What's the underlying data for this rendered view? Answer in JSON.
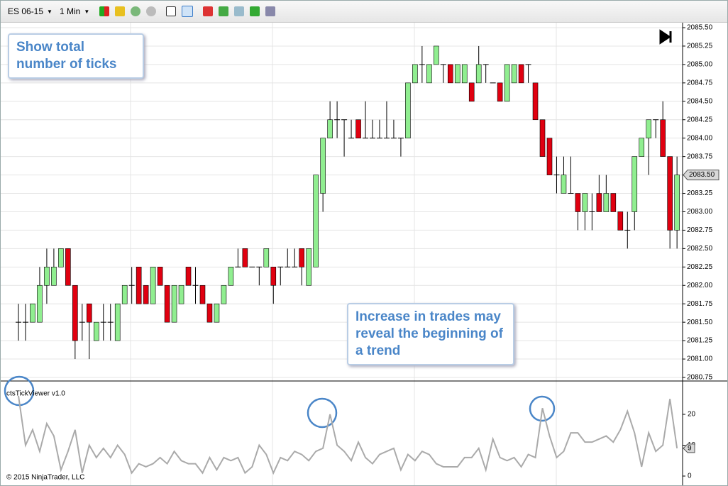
{
  "toolbar": {
    "instrument": "ES 06-15",
    "interval": "1 Min"
  },
  "annotations": [
    "Show total number of ticks",
    "Increase in trades may reveal the beginning of a trend"
  ],
  "copyright": "© 2015 NinjaTrader, LLC",
  "chart_data": [
    {
      "type": "candlestick",
      "ohlc": [
        [
          2081.5,
          2081.75,
          2081.25,
          2081.5
        ],
        [
          2081.5,
          2081.75,
          2081.25,
          2081.5
        ],
        [
          2081.5,
          2081.75,
          2081.5,
          2081.75
        ],
        [
          2081.5,
          2082.25,
          2081.5,
          2082
        ],
        [
          2082,
          2082.5,
          2081.75,
          2082.25
        ],
        [
          2082,
          2082.5,
          2082,
          2082.25
        ],
        [
          2082.25,
          2082.5,
          2082.25,
          2082.5
        ],
        [
          2082.5,
          2082.5,
          2082,
          2082
        ],
        [
          2082,
          2082,
          2081,
          2081.25
        ],
        [
          2081.5,
          2081.75,
          2081.25,
          2081.5
        ],
        [
          2081.75,
          2081.75,
          2081,
          2081.5
        ],
        [
          2081.25,
          2081.5,
          2081.25,
          2081.5
        ],
        [
          2081.5,
          2081.75,
          2081.25,
          2081.5
        ],
        [
          2081.5,
          2081.75,
          2081.25,
          2081.5
        ],
        [
          2081.25,
          2081.75,
          2081.25,
          2081.75
        ],
        [
          2081.75,
          2082,
          2081.75,
          2082
        ],
        [
          2082,
          2082.25,
          2081.75,
          2082
        ],
        [
          2082.25,
          2082.25,
          2081.75,
          2081.75
        ],
        [
          2082,
          2082,
          2081.75,
          2081.75
        ],
        [
          2081.75,
          2082.25,
          2081.75,
          2082.25
        ],
        [
          2082.25,
          2082.25,
          2082,
          2082
        ],
        [
          2082,
          2082,
          2081.5,
          2081.5
        ],
        [
          2081.5,
          2082,
          2081.5,
          2082
        ],
        [
          2081.75,
          2082,
          2081.75,
          2082
        ],
        [
          2082.25,
          2082.25,
          2082,
          2082
        ],
        [
          2082,
          2082.25,
          2081.75,
          2082
        ],
        [
          2082,
          2082,
          2081.75,
          2081.75
        ],
        [
          2081.75,
          2081.75,
          2081.5,
          2081.5
        ],
        [
          2081.5,
          2081.75,
          2081.5,
          2081.75
        ],
        [
          2081.75,
          2082,
          2081.75,
          2082
        ],
        [
          2082,
          2082.25,
          2082,
          2082.25
        ],
        [
          2082.25,
          2082.5,
          2082.25,
          2082.25
        ],
        [
          2082.5,
          2082.5,
          2082.25,
          2082.25
        ],
        [
          2082.25,
          2082.25,
          2082.25,
          2082.25
        ],
        [
          2082.25,
          2082.25,
          2082,
          2082.25
        ],
        [
          2082.25,
          2082.5,
          2082.25,
          2082.5
        ],
        [
          2082.25,
          2082.25,
          2081.75,
          2082
        ],
        [
          2082.25,
          2082.25,
          2082,
          2082.25
        ],
        [
          2082.25,
          2082.5,
          2082.25,
          2082.25
        ],
        [
          2082.25,
          2082.5,
          2082.25,
          2082.25
        ],
        [
          2082.5,
          2082.5,
          2082,
          2082.25
        ],
        [
          2082,
          2082.5,
          2082,
          2082.5
        ],
        [
          2082.25,
          2083.5,
          2082.25,
          2083.5
        ],
        [
          2083.25,
          2084,
          2083,
          2084
        ],
        [
          2084,
          2084.5,
          2084,
          2084.25
        ],
        [
          2084.25,
          2084.5,
          2084,
          2084.25
        ],
        [
          2084.25,
          2084.25,
          2083.75,
          2084.25
        ],
        [
          2084,
          2084.25,
          2084,
          2084
        ],
        [
          2084.25,
          2084.25,
          2084,
          2084
        ],
        [
          2084,
          2084.5,
          2084,
          2084
        ],
        [
          2084,
          2084.25,
          2084,
          2084
        ],
        [
          2084,
          2084.25,
          2084,
          2084
        ],
        [
          2084,
          2084.5,
          2084,
          2084
        ],
        [
          2084,
          2084.25,
          2084,
          2084
        ],
        [
          2084,
          2084,
          2083.75,
          2084
        ],
        [
          2084,
          2084.75,
          2084,
          2084.75
        ],
        [
          2084.75,
          2085,
          2084.75,
          2085
        ],
        [
          2085,
          2085.25,
          2084.75,
          2085
        ],
        [
          2084.75,
          2085,
          2084.75,
          2085
        ],
        [
          2085,
          2085.25,
          2085,
          2085.25
        ],
        [
          2085,
          2085,
          2084.75,
          2085
        ],
        [
          2085,
          2085,
          2084.75,
          2084.75
        ],
        [
          2084.75,
          2085,
          2084.75,
          2085
        ],
        [
          2084.75,
          2085,
          2084.75,
          2085
        ],
        [
          2084.75,
          2084.75,
          2084.5,
          2084.5
        ],
        [
          2084.75,
          2085.25,
          2084.75,
          2085
        ],
        [
          2085,
          2085,
          2084.75,
          2085
        ],
        [
          2084.75,
          2084.75,
          2084.75,
          2084.75
        ],
        [
          2084.75,
          2084.75,
          2084.5,
          2084.5
        ],
        [
          2084.5,
          2085,
          2084.5,
          2085
        ],
        [
          2084.75,
          2085,
          2084.75,
          2085
        ],
        [
          2085,
          2085,
          2084.75,
          2084.75
        ],
        [
          2085,
          2085,
          2084.75,
          2085
        ],
        [
          2084.75,
          2084.75,
          2084.25,
          2084.25
        ],
        [
          2084.25,
          2084.25,
          2083.75,
          2083.75
        ],
        [
          2084,
          2084,
          2083.5,
          2083.5
        ],
        [
          2083.5,
          2083.75,
          2083.25,
          2083.5
        ],
        [
          2083.25,
          2083.75,
          2083.25,
          2083.5
        ],
        [
          2083.25,
          2083.75,
          2083.25,
          2083.25
        ],
        [
          2083.25,
          2083.25,
          2082.75,
          2083
        ],
        [
          2083,
          2083.25,
          2082.75,
          2083.25
        ],
        [
          2083,
          2083.25,
          2082.75,
          2083
        ],
        [
          2083.25,
          2083.5,
          2083,
          2083
        ],
        [
          2083,
          2083.5,
          2083,
          2083.25
        ],
        [
          2083.25,
          2083.25,
          2083,
          2083
        ],
        [
          2083,
          2083,
          2082.75,
          2082.75
        ],
        [
          2082.75,
          2083,
          2082.5,
          2082.75
        ],
        [
          2083,
          2083.75,
          2082.75,
          2083.75
        ],
        [
          2083.75,
          2084,
          2083.75,
          2084
        ],
        [
          2084,
          2084.25,
          2083.5,
          2084.25
        ],
        [
          2084.25,
          2084.25,
          2084,
          2084.25
        ],
        [
          2084.25,
          2084.5,
          2083.75,
          2083.75
        ],
        [
          2083.75,
          2083.75,
          2082.5,
          2082.75
        ],
        [
          2082.75,
          2083.75,
          2082.5,
          2083.5
        ]
      ],
      "up_color": "#90ee90",
      "down_color": "#e00010",
      "ylim": [
        2080.75,
        2085.5
      ],
      "yticks": [
        {
          "value": 2080.75,
          "label": "2080.75"
        },
        {
          "value": 2081,
          "label": "2081.00"
        },
        2081.25,
        {
          "value": 2081.5,
          "label": "2081.50"
        },
        2081.75,
        {
          "value": 2082,
          "label": "2082.00"
        },
        2082.25,
        {
          "value": 2082.5,
          "label": "2082.50"
        },
        2082.75,
        {
          "value": 2083,
          "label": "2083.00"
        },
        2083.25,
        {
          "value": 2083.5,
          "label": "2083.50"
        },
        2083.75,
        {
          "value": 2084,
          "label": "2084.00"
        },
        2084.25,
        {
          "value": 2084.5,
          "label": "2084.50"
        },
        2084.75,
        {
          "value": 2085,
          "label": "2085.00"
        },
        2085.25,
        {
          "value": 2085.5,
          "label": "2085.50"
        }
      ],
      "last_price": {
        "value": 2083.5,
        "label": "2083.50"
      },
      "grid": true
    },
    {
      "type": "line",
      "name": "ctsTickViewer v1.0",
      "color": "#aaaaaa",
      "values": [
        26,
        10,
        15,
        8,
        17,
        13,
        2,
        8,
        15,
        1,
        10,
        6,
        9,
        6,
        10,
        7,
        1,
        4,
        3,
        4,
        6,
        4,
        8,
        5,
        4,
        4,
        1,
        6,
        2,
        6,
        5,
        6,
        1,
        3,
        10,
        7,
        1,
        6,
        5,
        8,
        7,
        5,
        8,
        9,
        20,
        10,
        8,
        5,
        11,
        6,
        4,
        7,
        8,
        9,
        2,
        7,
        5,
        8,
        7,
        4,
        3,
        3,
        3,
        6,
        6,
        9,
        2,
        12,
        6,
        5,
        6,
        3,
        7,
        6,
        22,
        13,
        6,
        8,
        14,
        14,
        11,
        11,
        12,
        13,
        11,
        15,
        21,
        14,
        3,
        14,
        8,
        10,
        25,
        9
      ],
      "ylim": [
        0,
        30
      ],
      "yticks": [
        0,
        10,
        20
      ],
      "grid": true
    }
  ]
}
